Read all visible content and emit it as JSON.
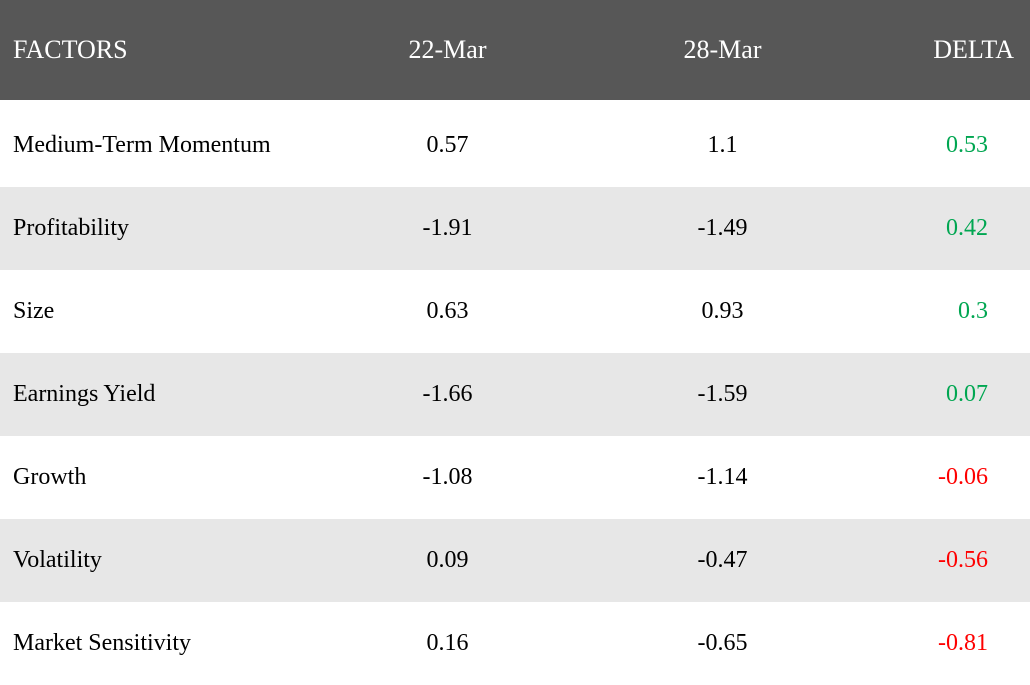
{
  "table": {
    "headers": {
      "factors": "FACTORS",
      "date1": "22-Mar",
      "date2": "28-Mar",
      "delta": "DELTA"
    },
    "rows": [
      {
        "factor": "Medium-Term Momentum",
        "mar22": "0.57",
        "mar28": "1.1",
        "delta": "0.53"
      },
      {
        "factor": "Profitability",
        "mar22": "-1.91",
        "mar28": "-1.49",
        "delta": "0.42"
      },
      {
        "factor": "Size",
        "mar22": "0.63",
        "mar28": "0.93",
        "delta": "0.3"
      },
      {
        "factor": "Earnings Yield",
        "mar22": "-1.66",
        "mar28": "-1.59",
        "delta": "0.07"
      },
      {
        "factor": "Growth",
        "mar22": "-1.08",
        "mar28": "-1.14",
        "delta": "-0.06"
      },
      {
        "factor": "Volatility",
        "mar22": "0.09",
        "mar28": "-0.47",
        "delta": "-0.56"
      },
      {
        "factor": "Market Sensitivity",
        "mar22": "0.16",
        "mar28": "-0.65",
        "delta": "-0.81"
      }
    ]
  },
  "colors": {
    "header_bg": "#575757",
    "header_text": "#ffffff",
    "row_alt_bg": "#e7e7e7",
    "row_bg": "#ffffff",
    "cell_text": "#000000",
    "positive": "#00a651",
    "negative": "#fe0000"
  }
}
